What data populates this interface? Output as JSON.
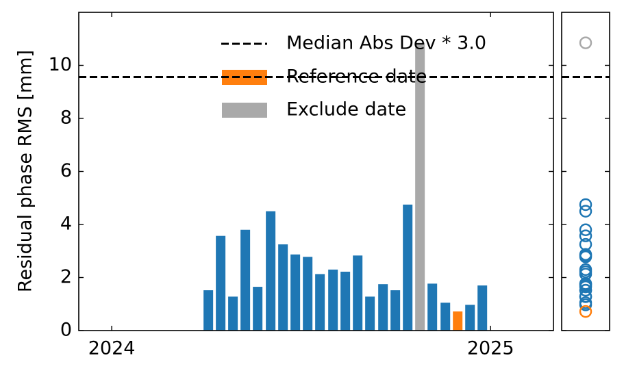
{
  "chart_data": {
    "type": "bar",
    "ylabel": "Residual phase RMS [mm]",
    "xlim": [
      2023.913,
      2025.166
    ],
    "xticks": [
      2024,
      2025
    ],
    "ylim": [
      0,
      12
    ],
    "yticks": [
      0,
      2,
      4,
      6,
      8,
      10
    ],
    "threshold": {
      "name": "Median Abs Dev * 3.0",
      "value": 9.56,
      "color": "#000000"
    },
    "series": [
      {
        "color": "#1f77b4",
        "x": [
          2024.255,
          2024.2875,
          2024.32,
          2024.3526,
          2024.3852,
          2024.4195,
          2024.4521,
          2024.4846,
          2024.5172,
          2024.5497,
          2024.5841,
          2024.6166,
          2024.6492,
          2024.6817,
          2024.7161,
          2024.7486,
          2024.7812,
          2024.8463,
          2024.8807,
          2024.9458,
          2024.9783
        ],
        "values": [
          1.52,
          3.57,
          1.28,
          3.8,
          1.65,
          4.5,
          3.25,
          2.87,
          2.78,
          2.13,
          2.3,
          2.22,
          2.83,
          1.28,
          1.75,
          1.52,
          4.75,
          1.77,
          1.05,
          0.97,
          1.7
        ]
      },
      {
        "name": "Reference date",
        "color": "#ff7f0e",
        "x": [
          2024.9132
        ],
        "values": [
          0.72
        ]
      },
      {
        "name": "Exclude date",
        "color": "#a9a9a9",
        "x": [
          2024.8137
        ],
        "values": [
          10.85
        ]
      }
    ]
  }
}
